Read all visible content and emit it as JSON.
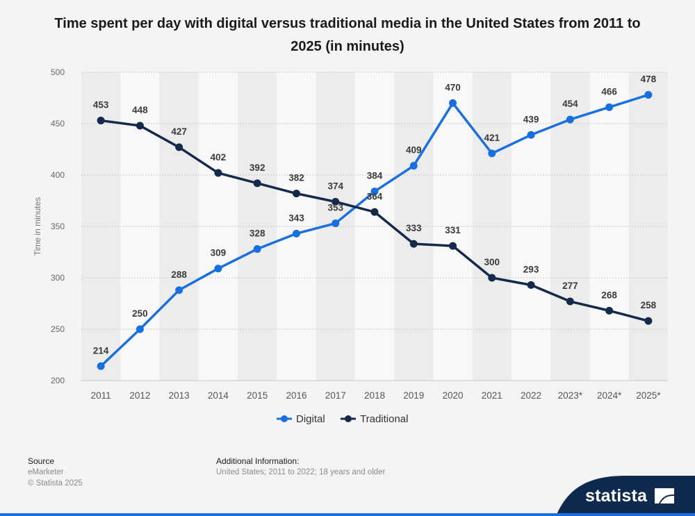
{
  "title": "Time spent per day with digital versus traditional media in the United States from 2011 to 2025 (in minutes)",
  "footer": {
    "source_heading": "Source",
    "source_name": "eMarketer",
    "copyright": "© Statista 2025",
    "additional_heading": "Additional Information:",
    "additional_text": "United States; 2011 to 2022; 18 years and older"
  },
  "brand": {
    "logo_text": "statista"
  },
  "colors": {
    "digital": "#1a6fdf",
    "traditional": "#152a4a",
    "background": "#f4f4f4",
    "logo_band": "#0f2a4e"
  },
  "chart_data": {
    "type": "line",
    "categories": [
      "2011",
      "2012",
      "2013",
      "2014",
      "2015",
      "2016",
      "2017",
      "2018",
      "2019",
      "2020",
      "2021",
      "2022",
      "2023*",
      "2024*",
      "2025*"
    ],
    "series": [
      {
        "name": "Digital",
        "values": [
          214,
          250,
          288,
          309,
          328,
          343,
          353,
          384,
          409,
          470,
          421,
          439,
          454,
          466,
          478
        ]
      },
      {
        "name": "Traditional",
        "values": [
          453,
          448,
          427,
          402,
          392,
          382,
          374,
          364,
          333,
          331,
          300,
          293,
          277,
          268,
          258
        ]
      }
    ],
    "ylabel": "Time in minutes",
    "xlabel": "",
    "ylim": [
      200,
      500
    ],
    "yticks": [
      200,
      250,
      300,
      350,
      400,
      450,
      500
    ],
    "grid": true,
    "legend": "bottom"
  }
}
